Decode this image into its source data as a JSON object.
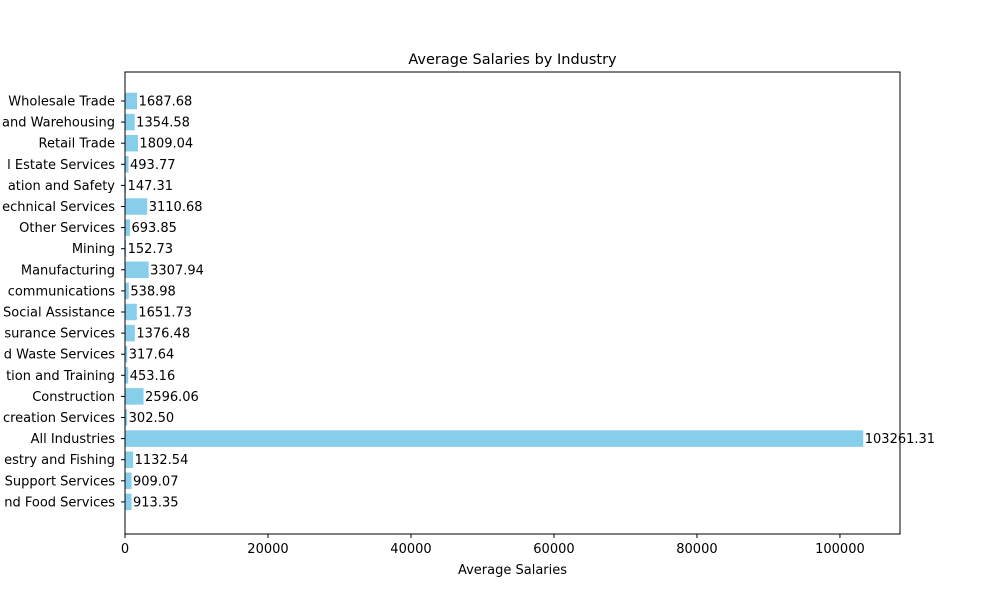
{
  "chart_data": {
    "type": "bar",
    "orientation": "horizontal",
    "title": "Average Salaries by Industry",
    "xlabel": "Average Salaries",
    "ylabel": "",
    "xlim": [
      0,
      108400
    ],
    "xticks": [
      0,
      20000,
      40000,
      60000,
      80000,
      100000
    ],
    "grid": false,
    "bar_color": "#87ceeb",
    "categories": [
      "Wholesale Trade",
      "and Warehousing",
      "Retail Trade",
      "l Estate Services",
      "ation and Safety",
      "echnical Services",
      "Other Services",
      "Mining",
      "Manufacturing",
      "communications",
      "Social Assistance",
      "surance Services",
      "d Waste Services",
      "tion and Training",
      "Construction",
      "creation Services",
      "All Industries",
      "estry and Fishing",
      "Support Services",
      "nd Food Services"
    ],
    "values": [
      1687.68,
      1354.58,
      1809.04,
      493.77,
      147.31,
      3110.68,
      693.85,
      152.73,
      3307.94,
      538.98,
      1651.73,
      1376.48,
      317.64,
      453.16,
      2596.06,
      302.5,
      103261.31,
      1132.54,
      909.07,
      913.35
    ],
    "value_labels": [
      "1687.68",
      "1354.58",
      "1809.04",
      "493.77",
      "147.31",
      "3110.68",
      "693.85",
      "152.73",
      "3307.94",
      "538.98",
      "1651.73",
      "1376.48",
      "317.64",
      "453.16",
      "2596.06",
      "302.50",
      "103261.31",
      "1132.54",
      "909.07",
      "913.35"
    ]
  }
}
